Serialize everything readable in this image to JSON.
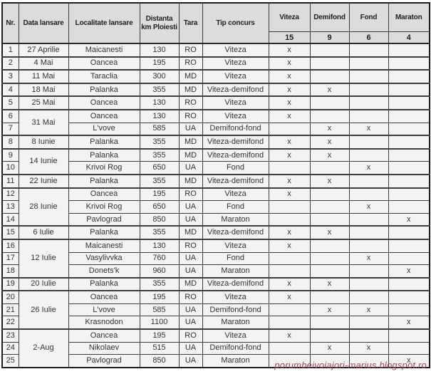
{
  "table": {
    "headers": {
      "nr": "Nr.",
      "data_lansare": "Data lansare",
      "localitate": "Localitate lansare",
      "distanta": "Distanta km Ploiesti",
      "tara": "Tara",
      "tip_concurs": "Tip concurs",
      "categories": [
        {
          "label": "Viteza",
          "count": "15"
        },
        {
          "label": "Demifond",
          "count": "9"
        },
        {
          "label": "Fond",
          "count": "6"
        },
        {
          "label": "Maraton",
          "count": "4"
        }
      ]
    },
    "rows": [
      {
        "nr": "1",
        "date": "27 Aprilie",
        "span": 1,
        "localitate": "Maicanesti",
        "km": "130",
        "tara": "RO",
        "tip": "Viteza",
        "viteza": "x",
        "demifond": "",
        "fond": "",
        "maraton": ""
      },
      {
        "nr": "2",
        "date": "4 Mai",
        "span": 1,
        "localitate": "Oancea",
        "km": "195",
        "tara": "RO",
        "tip": "Viteza",
        "viteza": "x",
        "demifond": "",
        "fond": "",
        "maraton": ""
      },
      {
        "nr": "3",
        "date": "11 Mai",
        "span": 1,
        "localitate": "Taraclia",
        "km": "300",
        "tara": "MD",
        "tip": "Viteza",
        "viteza": "x",
        "demifond": "",
        "fond": "",
        "maraton": ""
      },
      {
        "nr": "4",
        "date": "18 Mai",
        "span": 1,
        "localitate": "Palanka",
        "km": "355",
        "tara": "MD",
        "tip": "Viteza-demifond",
        "viteza": "x",
        "demifond": "x",
        "fond": "",
        "maraton": ""
      },
      {
        "nr": "5",
        "date": "25 Mai",
        "span": 1,
        "localitate": "Oancea",
        "km": "130",
        "tara": "RO",
        "tip": "Viteza",
        "viteza": "x",
        "demifond": "",
        "fond": "",
        "maraton": ""
      },
      {
        "nr": "6",
        "date": "31 Mai",
        "span": 2,
        "localitate": "Oancea",
        "km": "130",
        "tara": "RO",
        "tip": "Viteza",
        "viteza": "x",
        "demifond": "",
        "fond": "",
        "maraton": ""
      },
      {
        "nr": "7",
        "date": null,
        "span": 0,
        "localitate": "L'vove",
        "km": "585",
        "tara": "UA",
        "tip": "Demifond-fond",
        "viteza": "",
        "demifond": "x",
        "fond": "x",
        "maraton": ""
      },
      {
        "nr": "8",
        "date": "8 Iunie",
        "span": 1,
        "localitate": "Palanka",
        "km": "355",
        "tara": "MD",
        "tip": "Viteza-demifond",
        "viteza": "x",
        "demifond": "x",
        "fond": "",
        "maraton": ""
      },
      {
        "nr": "9",
        "date": "14 Iunie",
        "span": 2,
        "localitate": "Palanka",
        "km": "355",
        "tara": "MD",
        "tip": "Viteza-demifond",
        "viteza": "x",
        "demifond": "x",
        "fond": "",
        "maraton": ""
      },
      {
        "nr": "10",
        "date": null,
        "span": 0,
        "localitate": "Krivoi Rog",
        "km": "650",
        "tara": "UA",
        "tip": "Fond",
        "viteza": "",
        "demifond": "",
        "fond": "x",
        "maraton": ""
      },
      {
        "nr": "11",
        "date": "22 Iunie",
        "span": 1,
        "localitate": "Palanka",
        "km": "355",
        "tara": "MD",
        "tip": "Viteza-demifond",
        "viteza": "x",
        "demifond": "x",
        "fond": "",
        "maraton": ""
      },
      {
        "nr": "12",
        "date": "28 Iunie",
        "span": 3,
        "localitate": "Oancea",
        "km": "195",
        "tara": "RO",
        "tip": "Viteza",
        "viteza": "x",
        "demifond": "",
        "fond": "",
        "maraton": ""
      },
      {
        "nr": "13",
        "date": null,
        "span": 0,
        "localitate": "Krivoi Rog",
        "km": "650",
        "tara": "UA",
        "tip": "Fond",
        "viteza": "",
        "demifond": "",
        "fond": "x",
        "maraton": ""
      },
      {
        "nr": "14",
        "date": null,
        "span": 0,
        "localitate": "Pavlograd",
        "km": "850",
        "tara": "UA",
        "tip": "Maraton",
        "viteza": "",
        "demifond": "",
        "fond": "",
        "maraton": "x"
      },
      {
        "nr": "15",
        "date": "6 Iulie",
        "span": 1,
        "localitate": "Palanka",
        "km": "355",
        "tara": "MD",
        "tip": "Viteza-demifond",
        "viteza": "x",
        "demifond": "x",
        "fond": "",
        "maraton": ""
      },
      {
        "nr": "16",
        "date": "12 Iulie",
        "span": 3,
        "localitate": "Maicanesti",
        "km": "130",
        "tara": "RO",
        "tip": "Viteza",
        "viteza": "x",
        "demifond": "",
        "fond": "",
        "maraton": ""
      },
      {
        "nr": "17",
        "date": null,
        "span": 0,
        "localitate": "Vasylivvka",
        "km": "760",
        "tara": "UA",
        "tip": "Fond",
        "viteza": "",
        "demifond": "",
        "fond": "x",
        "maraton": ""
      },
      {
        "nr": "18",
        "date": null,
        "span": 0,
        "localitate": "Donets'k",
        "km": "960",
        "tara": "UA",
        "tip": "Maraton",
        "viteza": "",
        "demifond": "",
        "fond": "",
        "maraton": "x"
      },
      {
        "nr": "19",
        "date": "20 Iulie",
        "span": 1,
        "localitate": "Palanka",
        "km": "355",
        "tara": "MD",
        "tip": "Viteza-demifond",
        "viteza": "x",
        "demifond": "x",
        "fond": "",
        "maraton": ""
      },
      {
        "nr": "20",
        "date": "26 Iulie",
        "span": 3,
        "localitate": "Oancea",
        "km": "195",
        "tara": "RO",
        "tip": "Viteza",
        "viteza": "x",
        "demifond": "",
        "fond": "",
        "maraton": ""
      },
      {
        "nr": "21",
        "date": null,
        "span": 0,
        "localitate": "L'vove",
        "km": "585",
        "tara": "UA",
        "tip": "Demifond-fond",
        "viteza": "",
        "demifond": "x",
        "fond": "x",
        "maraton": ""
      },
      {
        "nr": "22",
        "date": null,
        "span": 0,
        "localitate": "Krasnodon",
        "km": "1100",
        "tara": "UA",
        "tip": "Maraton",
        "viteza": "",
        "demifond": "",
        "fond": "",
        "maraton": "x"
      },
      {
        "nr": "23",
        "date": "2-Aug",
        "span": 3,
        "localitate": "Oancea",
        "km": "195",
        "tara": "RO",
        "tip": "Viteza",
        "viteza": "x",
        "demifond": "",
        "fond": "",
        "maraton": ""
      },
      {
        "nr": "24",
        "date": null,
        "span": 0,
        "localitate": "Nikolaev",
        "km": "515",
        "tara": "UA",
        "tip": "Demifond-fond",
        "viteza": "",
        "demifond": "x",
        "fond": "x",
        "maraton": ""
      },
      {
        "nr": "25",
        "date": null,
        "span": 0,
        "localitate": "Pavlograd",
        "km": "850",
        "tara": "UA",
        "tip": "Maraton",
        "viteza": "",
        "demifond": "",
        "fond": "",
        "maraton": "x"
      }
    ]
  },
  "watermark": "porumbeivoiajori-marius.blogspot.ro"
}
